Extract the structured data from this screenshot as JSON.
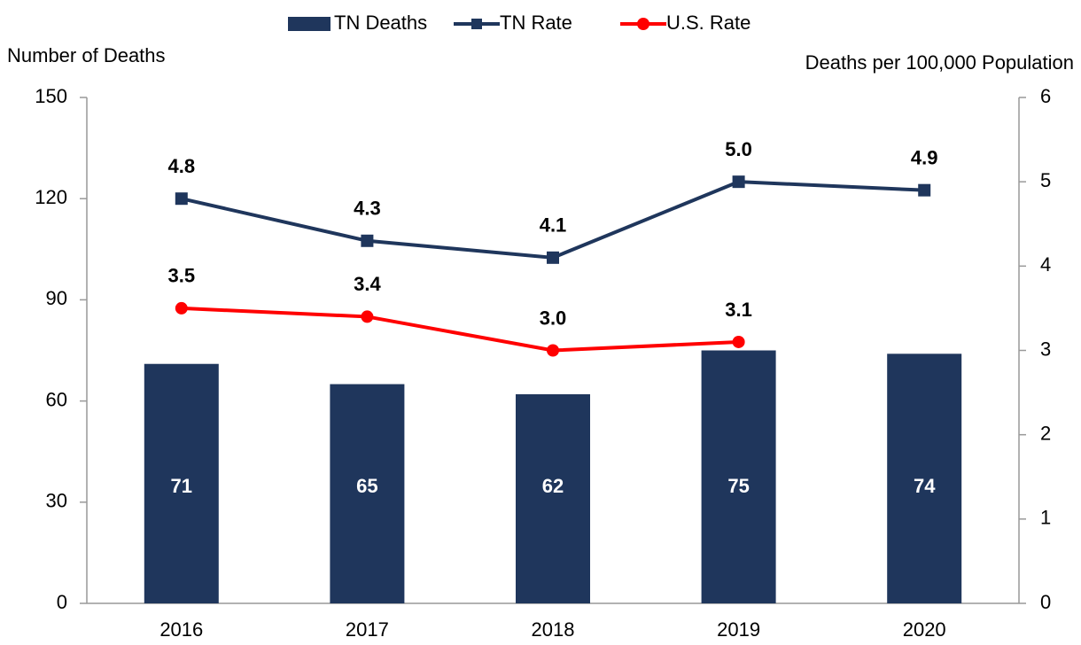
{
  "chart_data": {
    "type": "bar-line",
    "y_label": "Number of Deaths",
    "y2_label": "Deaths per 100,000 Population",
    "categories": [
      "2016",
      "2017",
      "2018",
      "2019",
      "2020"
    ],
    "series": [
      {
        "name": "TN Deaths",
        "type": "bar",
        "color": "#1f365c",
        "values": [
          71,
          65,
          62,
          75,
          74
        ]
      },
      {
        "name": "TN Rate",
        "type": "line",
        "marker": "square",
        "axis": "y2",
        "color": "#1f365c",
        "values": [
          4.8,
          4.3,
          4.1,
          5.0,
          4.9
        ],
        "value_labels": [
          "4.8",
          "4.3",
          "4.1",
          "5.0",
          "4.9"
        ]
      },
      {
        "name": "U.S. Rate",
        "type": "line",
        "marker": "circle",
        "axis": "y2",
        "color": "#ff0000",
        "values": [
          3.5,
          3.4,
          3.0,
          3.1,
          null
        ],
        "value_labels": [
          "3.5",
          "3.4",
          "3.0",
          "3.1",
          null
        ]
      }
    ],
    "ylim": [
      0,
      150
    ],
    "yticks": [
      0,
      30,
      60,
      90,
      120,
      150
    ],
    "y2lim": [
      0,
      6
    ],
    "y2ticks": [
      0,
      1,
      2,
      3,
      4,
      5,
      6
    ],
    "legend": "top"
  }
}
